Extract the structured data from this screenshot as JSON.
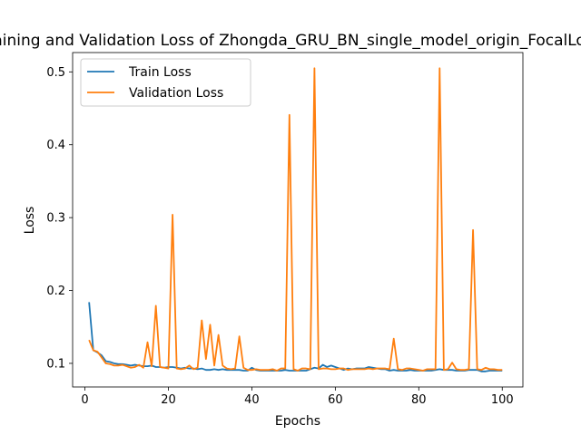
{
  "chart_data": {
    "type": "line",
    "title": "Training and Validation Loss of Zhongda_GRU_BN_single_model_origin_FocalLoss",
    "xlabel": "Epochs",
    "ylabel": "Loss",
    "xlim": [
      -2.95,
      104.95
    ],
    "ylim": [
      0.0676,
      0.5265
    ],
    "xticks": [
      0,
      20,
      40,
      60,
      80,
      100
    ],
    "yticks": [
      0.1,
      0.2,
      0.3,
      0.4,
      0.5
    ],
    "ytick_labels": [
      "0.1",
      "0.2",
      "0.3",
      "0.4",
      "0.5"
    ],
    "grid": false,
    "legend_position": "top-left",
    "x": [
      1,
      2,
      3,
      4,
      5,
      6,
      7,
      8,
      9,
      10,
      11,
      12,
      13,
      14,
      15,
      16,
      17,
      18,
      19,
      20,
      21,
      22,
      23,
      24,
      25,
      26,
      27,
      28,
      29,
      30,
      31,
      32,
      33,
      34,
      35,
      36,
      37,
      38,
      39,
      40,
      41,
      42,
      43,
      44,
      45,
      46,
      47,
      48,
      49,
      50,
      51,
      52,
      53,
      54,
      55,
      56,
      57,
      58,
      59,
      60,
      61,
      62,
      63,
      64,
      65,
      66,
      67,
      68,
      69,
      70,
      71,
      72,
      73,
      74,
      75,
      76,
      77,
      78,
      79,
      80,
      81,
      82,
      83,
      84,
      85,
      86,
      87,
      88,
      89,
      90,
      91,
      92,
      93,
      94,
      95,
      96,
      97,
      98,
      99,
      100
    ],
    "series": [
      {
        "name": "Train Loss",
        "color": "#1f77b4",
        "values": [
          0.184,
          0.118,
          0.115,
          0.111,
          0.103,
          0.102,
          0.1,
          0.099,
          0.099,
          0.098,
          0.097,
          0.098,
          0.097,
          0.096,
          0.096,
          0.097,
          0.095,
          0.095,
          0.094,
          0.095,
          0.095,
          0.094,
          0.093,
          0.094,
          0.093,
          0.093,
          0.092,
          0.093,
          0.091,
          0.091,
          0.092,
          0.091,
          0.092,
          0.091,
          0.091,
          0.091,
          0.091,
          0.09,
          0.09,
          0.094,
          0.091,
          0.09,
          0.09,
          0.09,
          0.09,
          0.09,
          0.09,
          0.091,
          0.09,
          0.09,
          0.09,
          0.09,
          0.09,
          0.092,
          0.094,
          0.093,
          0.098,
          0.095,
          0.097,
          0.095,
          0.093,
          0.091,
          0.093,
          0.092,
          0.093,
          0.093,
          0.093,
          0.095,
          0.094,
          0.093,
          0.092,
          0.092,
          0.09,
          0.091,
          0.09,
          0.09,
          0.09,
          0.091,
          0.09,
          0.09,
          0.09,
          0.09,
          0.09,
          0.091,
          0.092,
          0.091,
          0.091,
          0.091,
          0.09,
          0.09,
          0.09,
          0.091,
          0.091,
          0.091,
          0.089,
          0.089,
          0.09,
          0.09,
          0.09,
          0.09
        ]
      },
      {
        "name": "Validation Loss",
        "color": "#ff7f0e",
        "values": [
          0.132,
          0.118,
          0.116,
          0.108,
          0.1,
          0.099,
          0.097,
          0.097,
          0.098,
          0.096,
          0.094,
          0.095,
          0.098,
          0.094,
          0.129,
          0.096,
          0.179,
          0.095,
          0.094,
          0.093,
          0.304,
          0.093,
          0.092,
          0.093,
          0.097,
          0.092,
          0.094,
          0.159,
          0.106,
          0.153,
          0.097,
          0.139,
          0.097,
          0.093,
          0.092,
          0.093,
          0.137,
          0.094,
          0.091,
          0.091,
          0.092,
          0.091,
          0.091,
          0.091,
          0.092,
          0.09,
          0.093,
          0.093,
          0.441,
          0.092,
          0.09,
          0.093,
          0.093,
          0.092,
          0.505,
          0.092,
          0.093,
          0.093,
          0.092,
          0.092,
          0.093,
          0.093,
          0.091,
          0.092,
          0.092,
          0.092,
          0.092,
          0.093,
          0.092,
          0.093,
          0.093,
          0.093,
          0.092,
          0.134,
          0.092,
          0.091,
          0.093,
          0.093,
          0.092,
          0.091,
          0.09,
          0.092,
          0.092,
          0.092,
          0.505,
          0.091,
          0.092,
          0.101,
          0.092,
          0.091,
          0.091,
          0.092,
          0.283,
          0.092,
          0.091,
          0.094,
          0.092,
          0.092,
          0.091,
          0.091
        ]
      }
    ]
  }
}
